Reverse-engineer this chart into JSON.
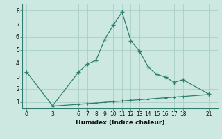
{
  "xlabel": "Humidex (Indice chaleur)",
  "bg_color": "#cce8e0",
  "line_color": "#2e7d6e",
  "grid_color": "#aacfc8",
  "line1_x": [
    0,
    3,
    6,
    7,
    8,
    9,
    10,
    11,
    12,
    13,
    14,
    15,
    16,
    17,
    18,
    21
  ],
  "line1_y": [
    3.3,
    0.7,
    3.3,
    3.9,
    4.2,
    5.8,
    6.9,
    7.9,
    5.7,
    4.9,
    3.7,
    3.1,
    2.9,
    2.5,
    2.7,
    1.6
  ],
  "line2_x": [
    3,
    6,
    7,
    8,
    9,
    10,
    11,
    12,
    13,
    14,
    15,
    16,
    17,
    18,
    21
  ],
  "line2_y": [
    0.68,
    0.82,
    0.87,
    0.92,
    0.97,
    1.02,
    1.07,
    1.12,
    1.17,
    1.22,
    1.27,
    1.32,
    1.37,
    1.42,
    1.57
  ],
  "xticks": [
    0,
    3,
    6,
    7,
    8,
    9,
    10,
    11,
    12,
    13,
    14,
    15,
    16,
    17,
    18,
    21
  ],
  "yticks": [
    1,
    2,
    3,
    4,
    5,
    6,
    7,
    8
  ],
  "ylim": [
    0.5,
    8.5
  ],
  "xlim": [
    -0.5,
    22.0
  ]
}
